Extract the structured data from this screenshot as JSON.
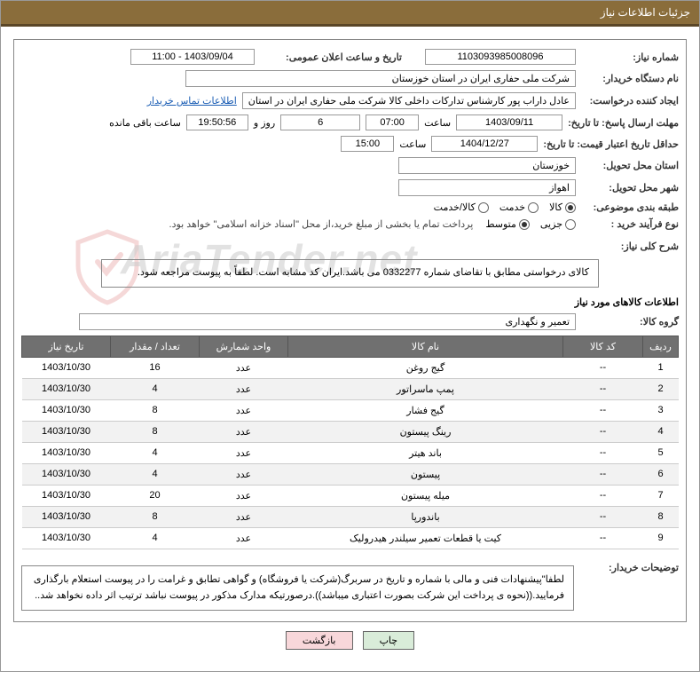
{
  "titleBar": "جزئیات اطلاعات نیاز",
  "fields": {
    "reqNoLabel": "شماره نیاز:",
    "reqNoValue": "1103093985008096",
    "pubDateLabel": "تاریخ و ساعت اعلان عمومی:",
    "pubDateValue": "1403/09/04 - 11:00",
    "buyerOrgLabel": "نام دستگاه خریدار:",
    "buyerOrgValue": "شرکت ملی حفاری ایران در استان خوزستان",
    "requesterLabel": "ایجاد کننده درخواست:",
    "requesterValue": "عادل داراب پور کارشناس تدارکات داخلی کالا شرکت ملی حفاری ایران در استان",
    "contactLink": "اطلاعات تماس خریدار",
    "deadlineLabel": "مهلت ارسال پاسخ: تا تاریخ:",
    "deadlineDate": "1403/09/11",
    "timeLabel": "ساعت",
    "deadlineTime": "07:00",
    "daysRemain": "6",
    "daysText": "روز و",
    "countdown": "19:50:56",
    "remainText": "ساعت باقی مانده",
    "validityLabel": "حداقل تاریخ اعتبار قیمت: تا تاریخ:",
    "validityDate": "1404/12/27",
    "validityTime": "15:00",
    "provinceLabel": "استان محل تحویل:",
    "provinceValue": "خوزستان",
    "cityLabel": "شهر محل تحویل:",
    "cityValue": "اهواز",
    "categoryLabel": "طبقه بندی موضوعی:",
    "cat1": "کالا",
    "cat2": "خدمت",
    "cat3": "کالا/خدمت",
    "procTypeLabel": "نوع فرآیند خرید :",
    "proc1": "جزیی",
    "proc2": "متوسط",
    "procNote": "پرداخت تمام یا بخشی از مبلغ خرید،از محل \"اسناد خزانه اسلامی\" خواهد بود.",
    "summaryLabel": "شرح کلی نیاز:",
    "summaryText": "کالای درخواستی مطابق با تقاضای شماره 0332277 می باشد.ایران کد مشابه است. لطفاً به پیوست مراجعه شود.",
    "itemsHeader": "اطلاعات کالاهای مورد نیاز",
    "groupLabel": "گروه کالا:",
    "groupValue": "تعمیر و نگهداری",
    "buyerNoteLabel": "توضیحات خریدار:",
    "buyerNoteText": "لطفا\"پیشنهادات فنی و مالی با شماره و تاریخ در سربرگ(شرکت یا فروشگاه) و گواهی تطابق و غرامت را در پیوست استعلام بارگذاری فرمایید.((نحوه ی پرداخت این شرکت بصورت اعتباری میباشد)).درصورتیکه مدارک مذکور در پیوست نباشد ترتیب اثر داده نخواهد شد.."
  },
  "table": {
    "headers": {
      "row": "ردیف",
      "code": "کد کالا",
      "name": "نام کالا",
      "unit": "واحد شمارش",
      "qty": "تعداد / مقدار",
      "date": "تاریخ نیاز"
    },
    "rows": [
      {
        "n": "1",
        "code": "--",
        "name": "گیج روغن",
        "unit": "عدد",
        "qty": "16",
        "date": "1403/10/30"
      },
      {
        "n": "2",
        "code": "--",
        "name": "پمپ ماسراتور",
        "unit": "عدد",
        "qty": "4",
        "date": "1403/10/30"
      },
      {
        "n": "3",
        "code": "--",
        "name": "گیج فشار",
        "unit": "عدد",
        "qty": "8",
        "date": "1403/10/30"
      },
      {
        "n": "4",
        "code": "--",
        "name": "رینگ پیستون",
        "unit": "عدد",
        "qty": "8",
        "date": "1403/10/30"
      },
      {
        "n": "5",
        "code": "--",
        "name": "باند هیتر",
        "unit": "عدد",
        "qty": "4",
        "date": "1403/10/30"
      },
      {
        "n": "6",
        "code": "--",
        "name": "پیستون",
        "unit": "عدد",
        "qty": "4",
        "date": "1403/10/30"
      },
      {
        "n": "7",
        "code": "--",
        "name": "میله پیستون",
        "unit": "عدد",
        "qty": "20",
        "date": "1403/10/30"
      },
      {
        "n": "8",
        "code": "--",
        "name": "باندورپا",
        "unit": "عدد",
        "qty": "8",
        "date": "1403/10/30"
      },
      {
        "n": "9",
        "code": "--",
        "name": "کیت یا قطعات تعمیر سیلندر هیدرولیک",
        "unit": "عدد",
        "qty": "4",
        "date": "1403/10/30"
      }
    ]
  },
  "buttons": {
    "print": "چاپ",
    "back": "بازگشت"
  },
  "watermark": "AriaTender.net"
}
